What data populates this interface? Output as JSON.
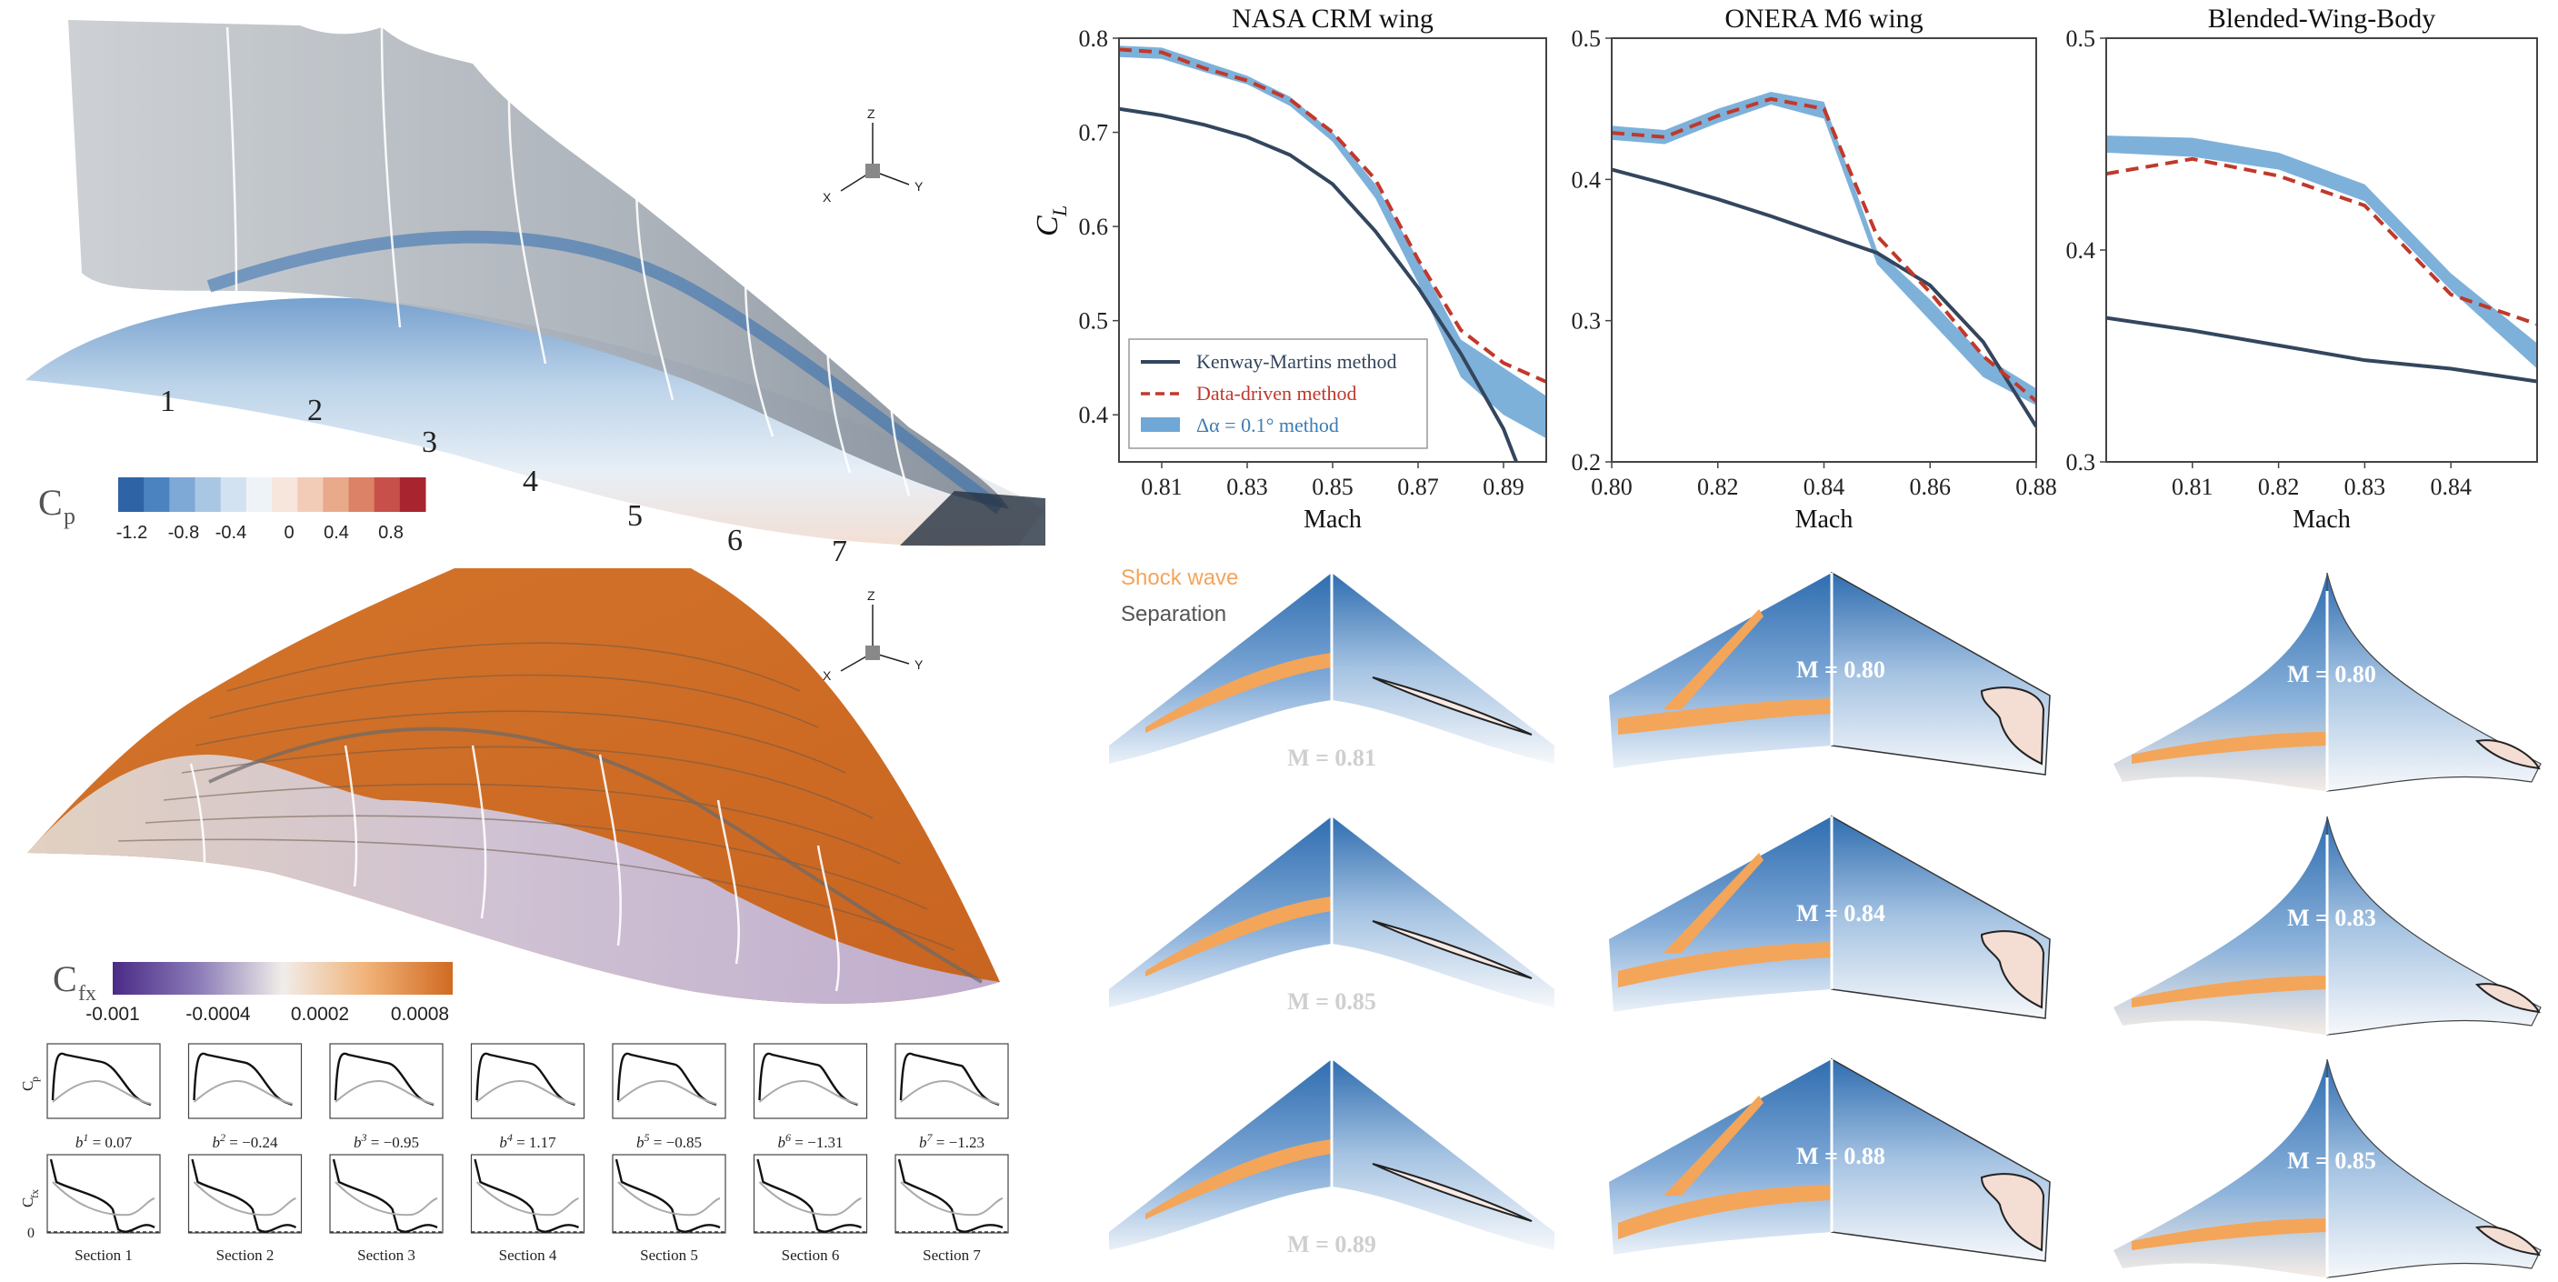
{
  "colors": {
    "navy": "#33465e",
    "red_dashed": "#c0392b",
    "band_blue": "#6fa8d6",
    "shock_orange": "#f3a55a",
    "separation_gray": "#555555",
    "wing_blue_dark": "#2f6db0",
    "wing_blue_light": "#d7e6f4",
    "cfx_orange": "#d06a22",
    "cfx_purple": "#4a2a86",
    "cp_red": "#b22a35"
  },
  "left_panel": {
    "section_numbers": [
      "1",
      "2",
      "3",
      "4",
      "5",
      "6",
      "7"
    ],
    "axis_triad": {
      "z": "Z",
      "x": "X",
      "y": "Y"
    },
    "cp_colorbar": {
      "label": "C",
      "label_sub": "p",
      "ticks": [
        "-1.2",
        "-0.8",
        "-0.4",
        "0",
        "0.4",
        "0.8"
      ],
      "colors": [
        "#2e63a6",
        "#4a83c0",
        "#7ea8d6",
        "#a9c6e3",
        "#d2e2f1",
        "#eef3f8",
        "#f7e6dc",
        "#f2ccb7",
        "#e9aa8c",
        "#dc8266",
        "#c8504a",
        "#a8242f"
      ]
    },
    "cfx_colorbar": {
      "label": "C",
      "label_sub": "fx",
      "ticks": [
        "-0.001",
        "-0.0004",
        "0.0002",
        "0.0008"
      ]
    },
    "section_plots": {
      "cp_ylabel": "C",
      "cp_ylabel_sub": "p",
      "cfx_ylabel": "C",
      "cfx_ylabel_sub": "fx",
      "cfx_zero_label": "0",
      "sections": [
        {
          "b_sup": "1",
          "b_value": "= 0.07",
          "name": "Section 1"
        },
        {
          "b_sup": "2",
          "b_value": "= −0.24",
          "name": "Section 2"
        },
        {
          "b_sup": "3",
          "b_value": "= −0.95",
          "name": "Section 3"
        },
        {
          "b_sup": "4",
          "b_value": "= 1.17",
          "name": "Section 4"
        },
        {
          "b_sup": "5",
          "b_value": "= −0.85",
          "name": "Section 5"
        },
        {
          "b_sup": "6",
          "b_value": "= −1.31",
          "name": "Section 6"
        },
        {
          "b_sup": "7",
          "b_value": "= −1.23",
          "name": "Section 7"
        }
      ]
    }
  },
  "chart_data": [
    {
      "type": "line",
      "title": "NASA CRM wing",
      "xlabel": "Mach",
      "ylabel": "C",
      "ylabel_sub": "L",
      "xlim": [
        0.8,
        0.9
      ],
      "ylim": [
        0.35,
        0.8
      ],
      "xticks": [
        "0.81",
        "0.83",
        "0.85",
        "0.87",
        "0.89"
      ],
      "xtick_values": [
        0.81,
        0.83,
        0.85,
        0.87,
        0.89
      ],
      "yticks": [
        "0.4",
        "0.5",
        "0.6",
        "0.7",
        "0.8"
      ],
      "ytick_values": [
        0.4,
        0.5,
        0.6,
        0.7,
        0.8
      ],
      "grid": false,
      "legend": {
        "placement": "bottom-left",
        "entries": [
          {
            "label": "Kenway-Martins method",
            "kind": "line"
          },
          {
            "label": "Data-driven method",
            "kind": "dashed"
          },
          {
            "label": "Δα = 0.1° method",
            "kind": "band"
          }
        ]
      },
      "series": [
        {
          "name": "Kenway-Martins method",
          "style": "solid",
          "x": [
            0.8,
            0.81,
            0.82,
            0.83,
            0.84,
            0.85,
            0.86,
            0.87,
            0.88,
            0.89,
            0.893
          ],
          "y": [
            0.725,
            0.718,
            0.708,
            0.695,
            0.676,
            0.645,
            0.595,
            0.535,
            0.465,
            0.385,
            0.35
          ]
        },
        {
          "name": "Data-driven method",
          "style": "dashed",
          "x": [
            0.8,
            0.81,
            0.82,
            0.83,
            0.84,
            0.85,
            0.86,
            0.87,
            0.88,
            0.89,
            0.9
          ],
          "y": [
            0.788,
            0.785,
            0.768,
            0.755,
            0.735,
            0.7,
            0.65,
            0.565,
            0.49,
            0.455,
            0.435
          ]
        },
        {
          "name": "Δα = 0.1° method",
          "style": "band",
          "x": [
            0.8,
            0.81,
            0.82,
            0.83,
            0.84,
            0.85,
            0.86,
            0.87,
            0.88,
            0.89,
            0.9
          ],
          "y_low": [
            0.78,
            0.778,
            0.764,
            0.751,
            0.728,
            0.69,
            0.63,
            0.54,
            0.44,
            0.4,
            0.375
          ],
          "y_high": [
            0.792,
            0.79,
            0.775,
            0.76,
            0.738,
            0.7,
            0.645,
            0.565,
            0.48,
            0.45,
            0.42
          ]
        }
      ]
    },
    {
      "type": "line",
      "title": "ONERA M6 wing",
      "xlabel": "Mach",
      "xlim": [
        0.8,
        0.88
      ],
      "ylim": [
        0.2,
        0.5
      ],
      "xticks": [
        "0.80",
        "0.82",
        "0.84",
        "0.86",
        "0.88"
      ],
      "xtick_values": [
        0.8,
        0.82,
        0.84,
        0.86,
        0.88
      ],
      "yticks": [
        "0.2",
        "0.3",
        "0.4",
        "0.5"
      ],
      "ytick_values": [
        0.2,
        0.3,
        0.4,
        0.5
      ],
      "grid": false,
      "series": [
        {
          "name": "Kenway-Martins method",
          "style": "solid",
          "x": [
            0.8,
            0.81,
            0.82,
            0.83,
            0.84,
            0.85,
            0.86,
            0.87,
            0.88
          ],
          "y": [
            0.407,
            0.397,
            0.386,
            0.374,
            0.361,
            0.348,
            0.325,
            0.285,
            0.225
          ]
        },
        {
          "name": "Data-driven method",
          "style": "dashed",
          "x": [
            0.8,
            0.81,
            0.82,
            0.83,
            0.84,
            0.85,
            0.86,
            0.87,
            0.88
          ],
          "y": [
            0.433,
            0.43,
            0.445,
            0.457,
            0.45,
            0.36,
            0.32,
            0.275,
            0.243
          ]
        },
        {
          "name": "Δα = 0.1° method",
          "style": "band",
          "x": [
            0.8,
            0.81,
            0.82,
            0.83,
            0.84,
            0.85,
            0.86,
            0.87,
            0.88
          ],
          "y_low": [
            0.428,
            0.425,
            0.44,
            0.453,
            0.443,
            0.34,
            0.3,
            0.26,
            0.24
          ],
          "y_high": [
            0.438,
            0.435,
            0.45,
            0.462,
            0.455,
            0.35,
            0.315,
            0.275,
            0.252
          ]
        }
      ]
    },
    {
      "type": "line",
      "title": "Blended-Wing-Body",
      "xlabel": "Mach",
      "xlim": [
        0.8,
        0.85
      ],
      "ylim": [
        0.3,
        0.5
      ],
      "xticks": [
        "0.81",
        "0.82",
        "0.83",
        "0.84"
      ],
      "xtick_values": [
        0.81,
        0.82,
        0.83,
        0.84
      ],
      "yticks": [
        "0.3",
        "0.4",
        "0.5"
      ],
      "ytick_values": [
        0.3,
        0.4,
        0.5
      ],
      "grid": false,
      "series": [
        {
          "name": "Kenway-Martins method",
          "style": "solid",
          "x": [
            0.8,
            0.81,
            0.82,
            0.83,
            0.84,
            0.85
          ],
          "y": [
            0.368,
            0.362,
            0.355,
            0.348,
            0.344,
            0.338
          ]
        },
        {
          "name": "Data-driven method",
          "style": "dashed",
          "x": [
            0.8,
            0.81,
            0.82,
            0.83,
            0.84,
            0.85
          ],
          "y": [
            0.436,
            0.443,
            0.435,
            0.421,
            0.379,
            0.365
          ]
        },
        {
          "name": "Δα = 0.1° method",
          "style": "band",
          "x": [
            0.8,
            0.81,
            0.82,
            0.83,
            0.84,
            0.85
          ],
          "y_low": [
            0.446,
            0.444,
            0.438,
            0.423,
            0.381,
            0.344
          ],
          "y_high": [
            0.454,
            0.453,
            0.446,
            0.431,
            0.389,
            0.356
          ]
        }
      ]
    }
  ],
  "wing_grid": {
    "legend": {
      "shock": "Shock wave",
      "separation": "Separation"
    },
    "columns": [
      {
        "id": "crm",
        "mach_labels": [
          "M = 0.81",
          "M = 0.85",
          "M = 0.89"
        ]
      },
      {
        "id": "m6",
        "mach_labels": [
          "M = 0.80",
          "M = 0.84",
          "M = 0.88"
        ]
      },
      {
        "id": "bwb",
        "mach_labels": [
          "M = 0.80",
          "M = 0.83",
          "M = 0.85"
        ]
      }
    ]
  }
}
